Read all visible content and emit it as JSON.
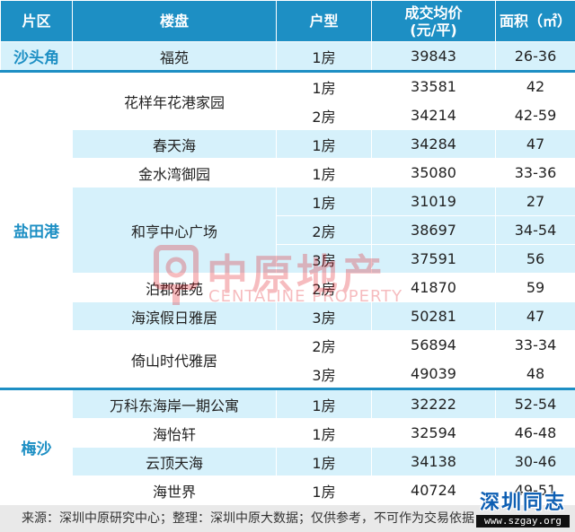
{
  "headers": {
    "district": "片区",
    "project": "楼盘",
    "unit_type": "户型",
    "price": "成交均价\n(元/平)",
    "area": "面积（㎡）"
  },
  "groups": [
    {
      "district": "沙头角",
      "rows": [
        {
          "project": "福苑",
          "type": "1房",
          "price": "39843",
          "area": "26-36"
        }
      ]
    },
    {
      "district": "盐田港",
      "rows": [
        {
          "project": "花样年花港家园",
          "type": "1房",
          "price": "33581",
          "area": "42"
        },
        {
          "project": "",
          "type": "2房",
          "price": "34214",
          "area": "42-59"
        },
        {
          "project": "春天海",
          "type": "1房",
          "price": "34284",
          "area": "47"
        },
        {
          "project": "金水湾御园",
          "type": "1房",
          "price": "35080",
          "area": "33-36"
        },
        {
          "project": "和亨中心广场",
          "type": "1房",
          "price": "31019",
          "area": "27"
        },
        {
          "project": "",
          "type": "2房",
          "price": "38697",
          "area": "34-54"
        },
        {
          "project": "",
          "type": "3房",
          "price": "37591",
          "area": "56"
        },
        {
          "project": "泊郡雅苑",
          "type": "2房",
          "price": "41870",
          "area": "59"
        },
        {
          "project": "海滨假日雅居",
          "type": "3房",
          "price": "50281",
          "area": "47"
        },
        {
          "project": "倚山时代雅居",
          "type": "2房",
          "price": "56894",
          "area": "33-34"
        },
        {
          "project": "",
          "type": "3房",
          "price": "49039",
          "area": "48"
        }
      ]
    },
    {
      "district": "梅沙",
      "rows": [
        {
          "project": "万科东海岸一期公寓",
          "type": "1房",
          "price": "32222",
          "area": "52-54"
        },
        {
          "project": "海怡轩",
          "type": "1房",
          "price": "32594",
          "area": "46-48"
        },
        {
          "project": "云顶天海",
          "type": "1房",
          "price": "34138",
          "area": "30-46"
        },
        {
          "project": "海世界",
          "type": "1房",
          "price": "40724",
          "area": "49-51"
        }
      ]
    }
  ],
  "source_note": "来源：深圳中原研究中心；整理：深圳中原大数据；仅供参考，不可作为交易依据",
  "watermark": {
    "cn": "中原地产",
    "en": "CENTALINE PROPERTY"
  },
  "brand": {
    "cn": "深圳同志",
    "url": "www.szgay.org"
  },
  "colors": {
    "header": "#1d8fc4",
    "band": "#d6f1fb",
    "district_text": "#1d8fc4",
    "watermark": "#e0121c"
  }
}
